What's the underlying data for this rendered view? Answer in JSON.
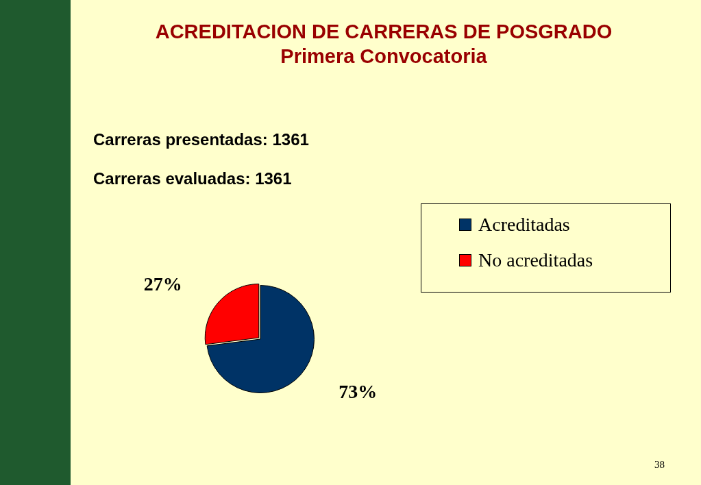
{
  "chart_data": {
    "type": "pie",
    "title": "ACREDITACION DE CARRERAS DE POSGRADO",
    "subtitle": "Primera Convocatoria",
    "annotations": [
      "Carreras presentadas: 1361",
      "Carreras evaluadas: 1361",
      "38"
    ],
    "categories": [
      "Acreditadas",
      "No acreditadas"
    ],
    "values": [
      73,
      27
    ],
    "colors": [
      "#003366",
      "#ff0000"
    ],
    "value_labels": [
      "73%",
      "27%"
    ],
    "legend": "top right"
  }
}
